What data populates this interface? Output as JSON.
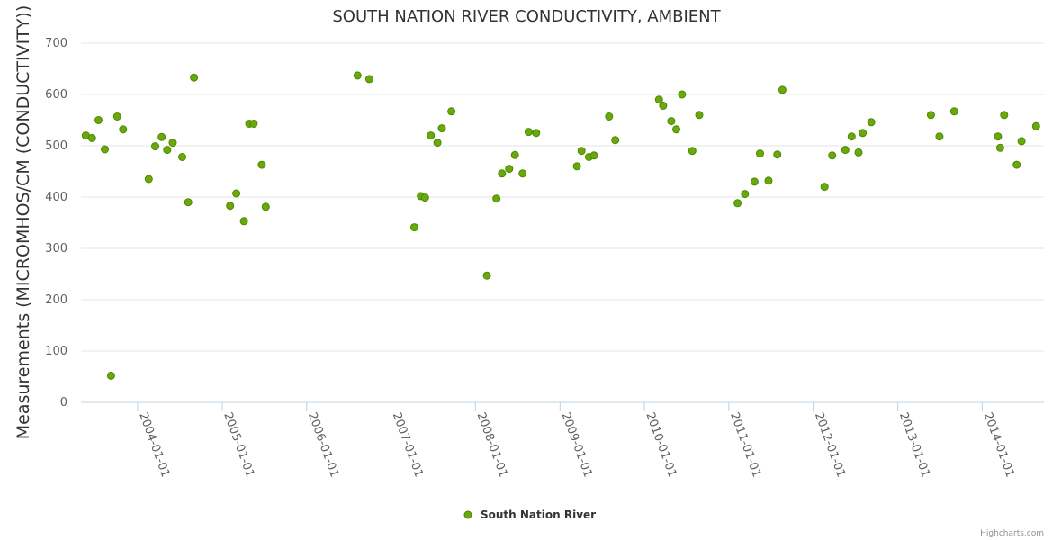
{
  "chart_data": {
    "type": "scatter",
    "title": "SOUTH NATION RIVER CONDUCTIVITY, AMBIENT",
    "xlabel": "",
    "ylabel": "Measurements (MICROMHOS/CM (CONDUCTIVITY))",
    "ylim": [
      0,
      700
    ],
    "yticks": [
      "0",
      "100",
      "200",
      "300",
      "400",
      "500",
      "600",
      "700"
    ],
    "xlim": [
      "2003-05-01",
      "2014-09-25"
    ],
    "xticks": [
      "2004-01-01",
      "2005-01-01",
      "2006-01-01",
      "2007-01-01",
      "2008-01-01",
      "2009-01-01",
      "2010-01-01",
      "2011-01-01",
      "2012-01-01",
      "2013-01-01",
      "2014-01-01"
    ],
    "grid": true,
    "legend_position": "bottom-center",
    "series": [
      {
        "name": "South Nation River",
        "color": "#6aa80c",
        "border": "#4a8a00",
        "points": [
          {
            "x": "2003-05-22",
            "y": 520
          },
          {
            "x": "2003-06-18",
            "y": 515
          },
          {
            "x": "2003-07-16",
            "y": 550
          },
          {
            "x": "2003-08-12",
            "y": 493
          },
          {
            "x": "2003-09-08",
            "y": 52
          },
          {
            "x": "2003-10-05",
            "y": 557
          },
          {
            "x": "2003-10-30",
            "y": 532
          },
          {
            "x": "2004-02-18",
            "y": 435
          },
          {
            "x": "2004-03-17",
            "y": 499
          },
          {
            "x": "2004-04-14",
            "y": 517
          },
          {
            "x": "2004-05-08",
            "y": 492
          },
          {
            "x": "2004-06-01",
            "y": 506
          },
          {
            "x": "2004-07-12",
            "y": 478
          },
          {
            "x": "2004-08-07",
            "y": 390
          },
          {
            "x": "2004-09-01",
            "y": 633
          },
          {
            "x": "2005-02-04",
            "y": 383
          },
          {
            "x": "2005-03-03",
            "y": 407
          },
          {
            "x": "2005-04-05",
            "y": 353
          },
          {
            "x": "2005-04-28",
            "y": 543
          },
          {
            "x": "2005-05-17",
            "y": 543
          },
          {
            "x": "2005-06-21",
            "y": 463
          },
          {
            "x": "2005-07-08",
            "y": 381
          },
          {
            "x": "2006-08-09",
            "y": 637
          },
          {
            "x": "2006-09-29",
            "y": 630
          },
          {
            "x": "2007-04-12",
            "y": 341
          },
          {
            "x": "2007-05-10",
            "y": 402
          },
          {
            "x": "2007-05-28",
            "y": 399
          },
          {
            "x": "2007-06-22",
            "y": 520
          },
          {
            "x": "2007-07-21",
            "y": 506
          },
          {
            "x": "2007-08-09",
            "y": 534
          },
          {
            "x": "2007-09-19",
            "y": 567
          },
          {
            "x": "2008-02-20",
            "y": 247
          },
          {
            "x": "2008-04-01",
            "y": 397
          },
          {
            "x": "2008-04-25",
            "y": 446
          },
          {
            "x": "2008-05-26",
            "y": 455
          },
          {
            "x": "2008-06-20",
            "y": 482
          },
          {
            "x": "2008-07-23",
            "y": 446
          },
          {
            "x": "2008-08-18",
            "y": 527
          },
          {
            "x": "2008-09-20",
            "y": 525
          },
          {
            "x": "2009-03-15",
            "y": 460
          },
          {
            "x": "2009-04-04",
            "y": 490
          },
          {
            "x": "2009-05-06",
            "y": 478
          },
          {
            "x": "2009-05-28",
            "y": 481
          },
          {
            "x": "2009-08-01",
            "y": 557
          },
          {
            "x": "2009-08-28",
            "y": 511
          },
          {
            "x": "2010-03-05",
            "y": 590
          },
          {
            "x": "2010-03-23",
            "y": 578
          },
          {
            "x": "2010-04-27",
            "y": 548
          },
          {
            "x": "2010-05-19",
            "y": 532
          },
          {
            "x": "2010-06-13",
            "y": 600
          },
          {
            "x": "2010-07-27",
            "y": 490
          },
          {
            "x": "2010-08-26",
            "y": 560
          },
          {
            "x": "2011-02-08",
            "y": 388
          },
          {
            "x": "2011-03-12",
            "y": 406
          },
          {
            "x": "2011-04-22",
            "y": 430
          },
          {
            "x": "2011-05-16",
            "y": 485
          },
          {
            "x": "2011-06-22",
            "y": 432
          },
          {
            "x": "2011-07-30",
            "y": 483
          },
          {
            "x": "2011-08-21",
            "y": 609
          },
          {
            "x": "2012-02-19",
            "y": 420
          },
          {
            "x": "2012-03-23",
            "y": 481
          },
          {
            "x": "2012-05-19",
            "y": 492
          },
          {
            "x": "2012-06-15",
            "y": 518
          },
          {
            "x": "2012-07-15",
            "y": 487
          },
          {
            "x": "2012-08-02",
            "y": 525
          },
          {
            "x": "2012-09-08",
            "y": 546
          },
          {
            "x": "2013-05-24",
            "y": 560
          },
          {
            "x": "2013-06-30",
            "y": 518
          },
          {
            "x": "2013-09-02",
            "y": 567
          },
          {
            "x": "2014-03-10",
            "y": 518
          },
          {
            "x": "2014-03-20",
            "y": 496
          },
          {
            "x": "2014-04-06",
            "y": 560
          },
          {
            "x": "2014-05-30",
            "y": 463
          },
          {
            "x": "2014-06-20",
            "y": 509
          },
          {
            "x": "2014-08-22",
            "y": 538
          }
        ]
      }
    ]
  },
  "credits": "Highcharts.com"
}
